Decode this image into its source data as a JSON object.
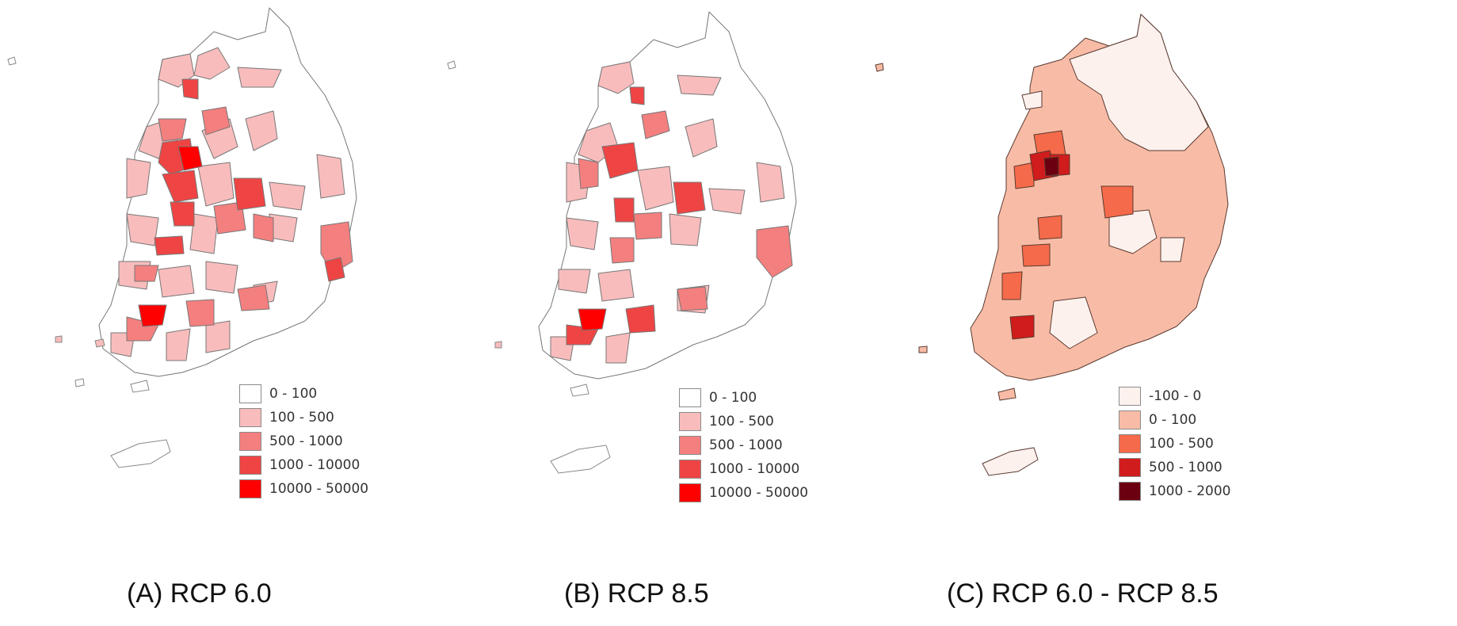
{
  "panels": [
    {
      "caption": "(A) RCP 6.0",
      "legend": [
        {
          "label": "0 - 100",
          "color": "#ffffff"
        },
        {
          "label": "100 - 500",
          "color": "#f9bcbc"
        },
        {
          "label": "500 - 1000",
          "color": "#f47f7f"
        },
        {
          "label": "1000 - 10000",
          "color": "#ef4444"
        },
        {
          "label": "10000 - 50000",
          "color": "#ff0000"
        }
      ]
    },
    {
      "caption": "(B) RCP 8.5",
      "legend": [
        {
          "label": "0 - 100",
          "color": "#ffffff"
        },
        {
          "label": "100 - 500",
          "color": "#f9bcbc"
        },
        {
          "label": "500 - 1000",
          "color": "#f47f7f"
        },
        {
          "label": "1000 - 10000",
          "color": "#ef4444"
        },
        {
          "label": "10000 - 50000",
          "color": "#ff0000"
        }
      ]
    },
    {
      "caption": "(C) RCP 6.0 - RCP 8.5",
      "legend": [
        {
          "label": "-100 - 0",
          "color": "#fdf1ee"
        },
        {
          "label": "0 - 100",
          "color": "#f8bca6"
        },
        {
          "label": "100 - 500",
          "color": "#f46a4a"
        },
        {
          "label": "500 - 1000",
          "color": "#d01c1c"
        },
        {
          "label": "1000 - 2000",
          "color": "#6b0010"
        }
      ]
    }
  ]
}
